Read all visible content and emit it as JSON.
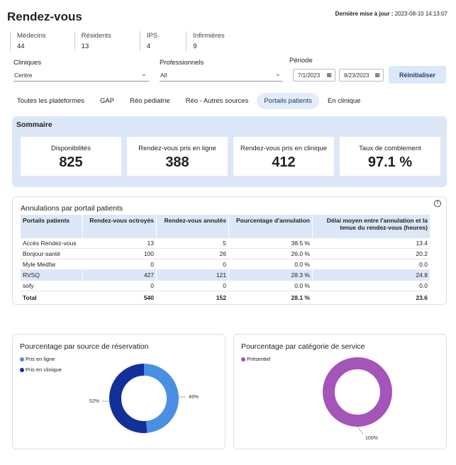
{
  "header": {
    "title": "Rendez-vous",
    "last_update_label": "Dernière mise à jour :",
    "last_update_value": "2023-08-10 14:13:07"
  },
  "stats": [
    {
      "label": "Médecins",
      "value": "44"
    },
    {
      "label": "Résidents",
      "value": "13"
    },
    {
      "label": "IPS",
      "value": "4"
    },
    {
      "label": "Infirmières",
      "value": "9"
    }
  ],
  "filters": {
    "cliniques_label": "Cliniques",
    "cliniques_value": "Centre",
    "professionnels_label": "Professionnels",
    "professionnels_value": "All",
    "periode_label": "Période",
    "start_date": "7/1/2023",
    "end_date": "8/23/2023",
    "reset_label": "Réinitialiser"
  },
  "tabs": [
    {
      "label": "Toutes les plateformes"
    },
    {
      "label": "GAP"
    },
    {
      "label": "Réo pédiatrie"
    },
    {
      "label": "Réo - Autres sources"
    },
    {
      "label": "Portails patients"
    },
    {
      "label": "En clinique"
    }
  ],
  "active_tab": 4,
  "summary": {
    "title": "Sommaire",
    "kpis": [
      {
        "label": "Disponibilités",
        "value": "825"
      },
      {
        "label": "Rendez-vous pris en ligne",
        "value": "388"
      },
      {
        "label": "Rendez-vous pris en clinique",
        "value": "412"
      },
      {
        "label": "Taux de comblement",
        "value": "97.1 %"
      }
    ]
  },
  "cancellations": {
    "title": "Annulations par portail patients",
    "headers": [
      "Portails patients",
      "Rendez-vous octroyés",
      "Rendez-vous annulés",
      "Pourcentage d'annulation",
      "Délai moyen entre l'annulation et la tenue du rendez-vous (heures)"
    ],
    "rows": [
      {
        "name": "Accès Rendez-vous",
        "granted": "13",
        "cancelled": "5",
        "pct": "38.5 %",
        "delay": "13.4",
        "highlight": false
      },
      {
        "name": "Bonjour-santé",
        "granted": "100",
        "cancelled": "26",
        "pct": "26.0 %",
        "delay": "20.2",
        "highlight": false
      },
      {
        "name": "Myle Medfar",
        "granted": "0",
        "cancelled": "0",
        "pct": "0.0 %",
        "delay": "0.0",
        "highlight": false
      },
      {
        "name": "RVSQ",
        "granted": "427",
        "cancelled": "121",
        "pct": "28.3 %",
        "delay": "24.8",
        "highlight": true
      },
      {
        "name": "sofy",
        "granted": "0",
        "cancelled": "0",
        "pct": "0.0 %",
        "delay": "0.0",
        "highlight": false
      }
    ],
    "total": {
      "name": "Total",
      "granted": "540",
      "cancelled": "152",
      "pct": "28.1 %",
      "delay": "23.6"
    }
  },
  "chart_data": [
    {
      "type": "pie",
      "title": "Pourcentage par source de réservation",
      "labels": [
        "Pris en ligne",
        "Pris en clinique"
      ],
      "values": [
        49,
        52
      ],
      "value_labels": [
        "49%",
        "52%"
      ],
      "colors": [
        "#4a90e2",
        "#12309a"
      ],
      "legend": "top-left"
    },
    {
      "type": "pie",
      "title": "Pourcentage par catégorie de service",
      "labels": [
        "Présentiel"
      ],
      "values": [
        100
      ],
      "value_labels": [
        "100%"
      ],
      "colors": [
        "#a455b8"
      ],
      "legend": "top-left"
    }
  ]
}
